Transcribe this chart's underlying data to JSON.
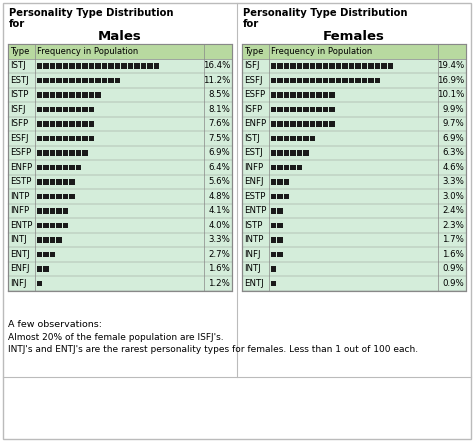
{
  "male_types": [
    "ISTJ",
    "ESTJ",
    "ISTP",
    "ISFJ",
    "ISFP",
    "ESFJ",
    "ESFP",
    "ENFP",
    "ESTP",
    "INTP",
    "INFP",
    "ENTP",
    "INTJ",
    "ENTJ",
    "ENFJ",
    "INFJ"
  ],
  "male_values": [
    16.4,
    11.2,
    8.5,
    8.1,
    7.6,
    7.5,
    6.9,
    6.4,
    5.6,
    4.8,
    4.1,
    4.0,
    3.3,
    2.7,
    1.6,
    1.2
  ],
  "female_types": [
    "ISFJ",
    "ESFJ",
    "ESFP",
    "ISFP",
    "ENFP",
    "ISTJ",
    "ESTJ",
    "INFP",
    "ENFJ",
    "ESTP",
    "ENTP",
    "ISTP",
    "INTP",
    "INFJ",
    "INTJ",
    "ENTJ"
  ],
  "female_values": [
    19.4,
    16.9,
    10.1,
    9.9,
    9.7,
    6.9,
    6.3,
    4.6,
    3.3,
    3.0,
    2.4,
    2.3,
    1.7,
    1.6,
    0.9,
    0.9
  ],
  "table_bg": "#d4edda",
  "header_bg": "#b8d9a0",
  "border_color": "#888888",
  "block_color": "#1a1a1a",
  "male_title_line1": "Personality Type Distribution",
  "male_title_line2": "for",
  "male_subtitle": "Males",
  "female_title_line1": "Personality Type Distribution",
  "female_title_line2": "for",
  "female_subtitle": "Females",
  "col_header1": "Type",
  "col_header2": "Frequency in Population",
  "observations_title": "A few observations:",
  "obs1": "Almost 20% of the female population are ISFJ's.",
  "obs2": "INTJ's and ENTJ's are the rarest personality types for females. Less than 1 out of 100 each."
}
